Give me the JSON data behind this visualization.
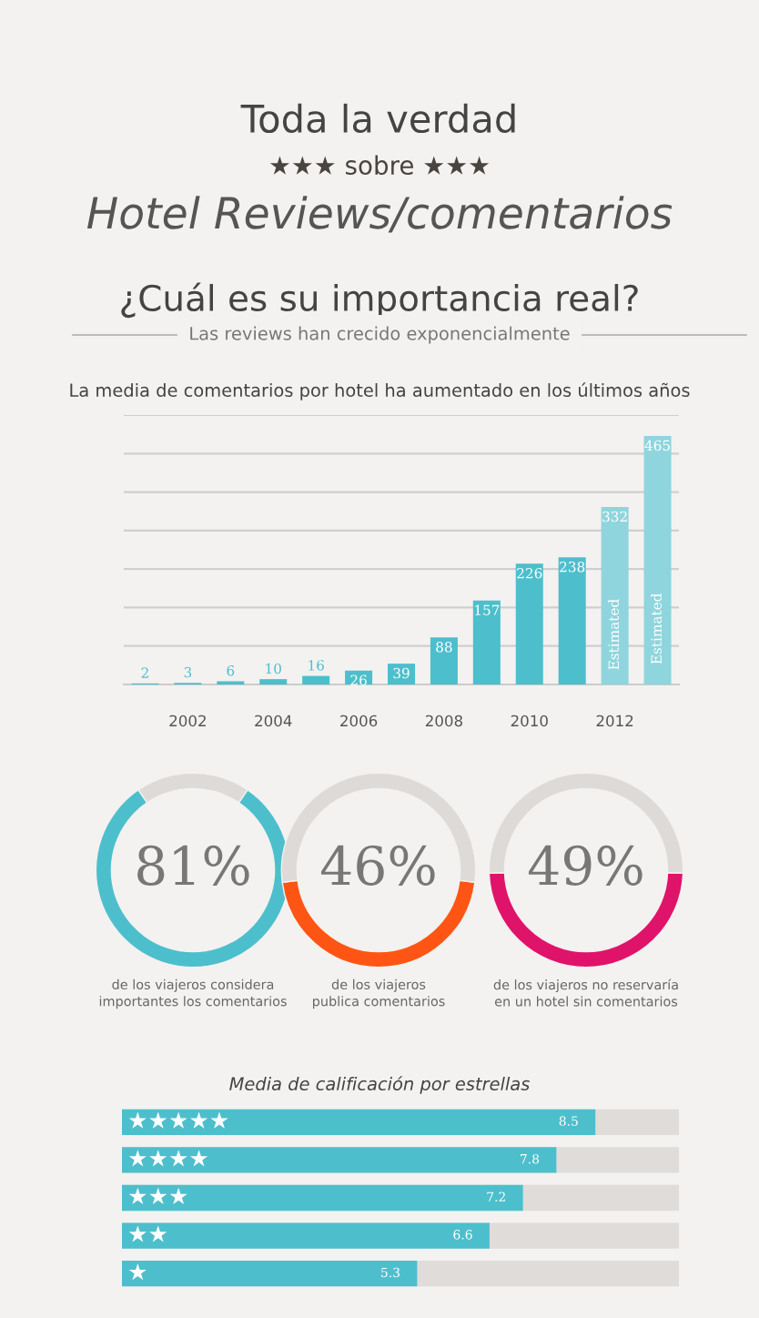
{
  "chart_data": [
    {
      "type": "other",
      "title": "Toda la verdad",
      "annotations": [
        "★★★ sobre ★★★",
        "Hotel Reviews/comentarios",
        "¿Cuál es su importancia real?",
        "Las reviews han crecido exponencialmente"
      ]
    },
    {
      "type": "bar",
      "title": "La media de comentarios por hotel ha aumentado en los últimos años",
      "categories": [
        null,
        "2002",
        null,
        "2004",
        null,
        "2006",
        null,
        "2008",
        null,
        "2010",
        null,
        "2012",
        null
      ],
      "values": [
        2,
        3,
        6,
        10,
        16,
        26,
        39,
        88,
        157,
        226,
        238,
        332,
        465
      ],
      "colors": [
        "#4dbfcc",
        "#4dbfcc",
        "#4dbfcc",
        "#4dbfcc",
        "#4dbfcc",
        "#4dbfcc",
        "#4dbfcc",
        "#4dbfcc",
        "#4dbfcc",
        "#4dbfcc",
        "#4dbfcc",
        "#8fd5dd",
        "#8fd5dd"
      ],
      "data_labels": true,
      "ylim": [
        0,
        504
      ],
      "yticks": [
        {
          "value": 0,
          "label": null
        },
        {
          "value": 72,
          "label": null
        },
        {
          "value": 144,
          "label": null
        },
        {
          "value": 216,
          "label": null
        },
        {
          "value": 288,
          "label": null
        },
        {
          "value": 360,
          "label": null
        },
        {
          "value": 432,
          "label": null
        },
        {
          "value": 504,
          "label": null
        }
      ],
      "grid": "y",
      "annotations": [
        "Estimated",
        "Estimated"
      ]
    },
    {
      "type": "donut",
      "categories": [
        null,
        null
      ],
      "values": [
        81,
        19
      ],
      "colors": [
        "#4dbfcc",
        "#dddad7"
      ],
      "annotations": [
        "81%",
        "de los viajeros considera\nimportantes los comentarios"
      ]
    },
    {
      "type": "donut",
      "categories": [
        null,
        null
      ],
      "values": [
        46,
        54
      ],
      "colors": [
        "#ff5514",
        "#dddad7"
      ],
      "annotations": [
        "46%",
        "de los viajeros\npublica comentarios"
      ]
    },
    {
      "type": "donut",
      "categories": [
        null,
        null
      ],
      "values": [
        49,
        51
      ],
      "colors": [
        "#e0136b",
        "#dddad7"
      ],
      "annotations": [
        "49%",
        "de los viajeros no reservaría\nen un hotel sin comentarios"
      ]
    },
    {
      "type": "bar",
      "orientation": "horizontal",
      "title": "Media de calificación por estrellas",
      "categories": [
        "★★★★★",
        "★★★★",
        "★★★",
        "★★",
        "★"
      ],
      "values": [
        8.5,
        7.8,
        7.2,
        6.6,
        5.3
      ],
      "color": "#4dbfcc",
      "data_labels": true,
      "xlim": [
        0,
        10
      ],
      "tick_labels": false
    }
  ]
}
